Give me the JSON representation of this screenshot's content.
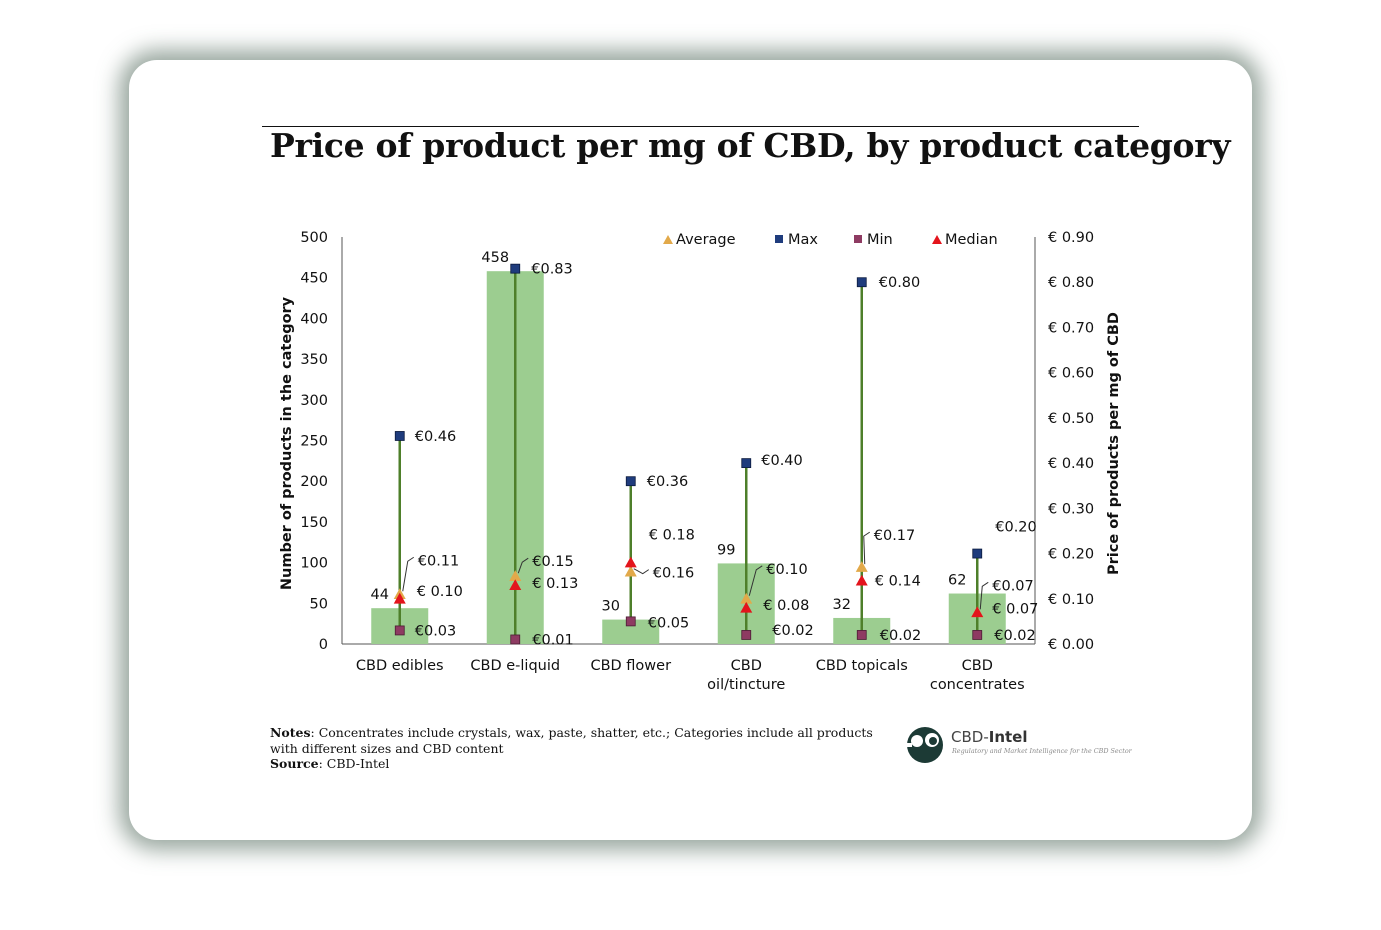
{
  "title": "Price of product per mg of CBD, by product category",
  "notes_label": "Notes",
  "notes_text": ": Concentrates include crystals, wax, paste, shatter, etc.; Categories include all products with different sizes and CBD content",
  "source_label": "Source",
  "source_text": ": CBD-Intel",
  "logo": {
    "prefix": "CBD-",
    "name": "Intel",
    "tagline": "Regulatory and Market Intelligence for the CBD Sector",
    "icon": "cbd-intel-logo-icon"
  },
  "colors": {
    "bar": "#9ccd90",
    "line": "#4e7f2a",
    "max": "#1f3c7d",
    "min": "#8e3b62",
    "average": "#e2a94a",
    "median": "#e3141c",
    "logo": "#1c3a35"
  },
  "chart_data": {
    "type": "bar",
    "title": "Price of product per mg of CBD, by product category",
    "categories": [
      "CBD edibles",
      "CBD e-liquid",
      "CBD flower",
      "CBD oil/tincture",
      "CBD topicals",
      "CBD concentrates"
    ],
    "category_lines": [
      [
        "CBD edibles"
      ],
      [
        "CBD e-liquid"
      ],
      [
        "CBD flower"
      ],
      [
        "CBD",
        "oil/tincture"
      ],
      [
        "CBD topicals"
      ],
      [
        "CBD",
        "concentrates"
      ]
    ],
    "ylabel": "Number of products in the category",
    "y2label": "Price of products per mg of CBD",
    "ylim": [
      0,
      500
    ],
    "y2lim": [
      0,
      0.9
    ],
    "yticks": [
      "0",
      "50",
      "100",
      "150",
      "200",
      "250",
      "300",
      "350",
      "400",
      "450",
      "500"
    ],
    "y2ticks": [
      "€ 0.00",
      "€ 0.10",
      "€ 0.20",
      "€ 0.30",
      "€ 0.40",
      "€ 0.50",
      "€ 0.60",
      "€ 0.70",
      "€ 0.80",
      "€ 0.90"
    ],
    "legend_position": "top-right",
    "legend": [
      "Average",
      "Max",
      "Min",
      "Median"
    ],
    "series": [
      {
        "name": "Number of products",
        "axis": "left",
        "type": "bar",
        "values": [
          44,
          458,
          30,
          99,
          32,
          62
        ],
        "labels": [
          "44",
          "458",
          "30",
          "99",
          "32",
          "62"
        ]
      },
      {
        "name": "Max",
        "axis": "right",
        "type": "scatter",
        "marker": "square",
        "values": [
          0.46,
          0.83,
          0.36,
          0.4,
          0.8,
          0.2
        ],
        "labels": [
          "€0.46",
          "€0.83",
          "€0.36",
          "€0.40",
          "€0.80",
          "€0.20"
        ]
      },
      {
        "name": "Min",
        "axis": "right",
        "type": "scatter",
        "marker": "square",
        "values": [
          0.03,
          0.01,
          0.05,
          0.02,
          0.02,
          0.02
        ],
        "labels": [
          "€0.03",
          "€0.01",
          "€0.05",
          "€0.02",
          "€0.02",
          "€0.02"
        ]
      },
      {
        "name": "Average",
        "axis": "right",
        "type": "scatter",
        "marker": "triangle",
        "values": [
          0.11,
          0.15,
          0.16,
          0.1,
          0.17,
          0.07
        ],
        "labels": [
          "€0.11",
          "€0.15",
          "€0.16",
          "€0.10",
          "€0.17",
          "€0.07"
        ]
      },
      {
        "name": "Median",
        "axis": "right",
        "type": "scatter",
        "marker": "triangle",
        "values": [
          0.1,
          0.13,
          0.18,
          0.08,
          0.14,
          0.07
        ],
        "labels": [
          "€ 0.10",
          "€ 0.13",
          "€ 0.18",
          "€ 0.08",
          "€ 0.14",
          "€ 0.07"
        ]
      }
    ]
  }
}
